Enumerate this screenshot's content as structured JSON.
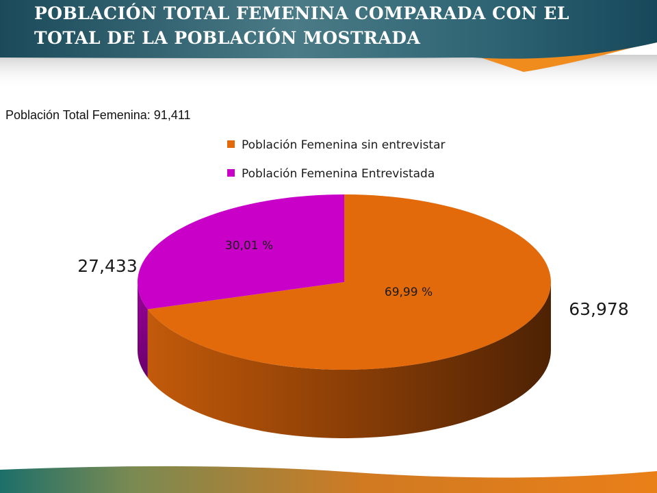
{
  "slide": {
    "title_lines": [
      "POBLACIÓN TOTAL FEMENINA COMPARADA CON EL",
      "TOTAL DE LA POBLACIÓN MOSTRADA"
    ],
    "total_label": "Población Total Femenina: 91,411"
  },
  "colors": {
    "header_dark": "#1d4f5e",
    "accent_orange": "#f28a1d",
    "slice_orange": "#e26a0b",
    "slice_magenta": "#c800c8"
  },
  "chart_data": {
    "type": "pie",
    "title": "",
    "legend_position": "top",
    "slices": [
      {
        "name": "Población Femenina sin entrevistar",
        "value": 63978,
        "value_label": "63,978",
        "percent_label": "69,99 %",
        "color": "#e26a0b"
      },
      {
        "name": "Población Femenina Entrevistada",
        "value": 27433,
        "value_label": "27,433",
        "percent_label": "30,01 %",
        "color": "#c800c8"
      }
    ]
  }
}
